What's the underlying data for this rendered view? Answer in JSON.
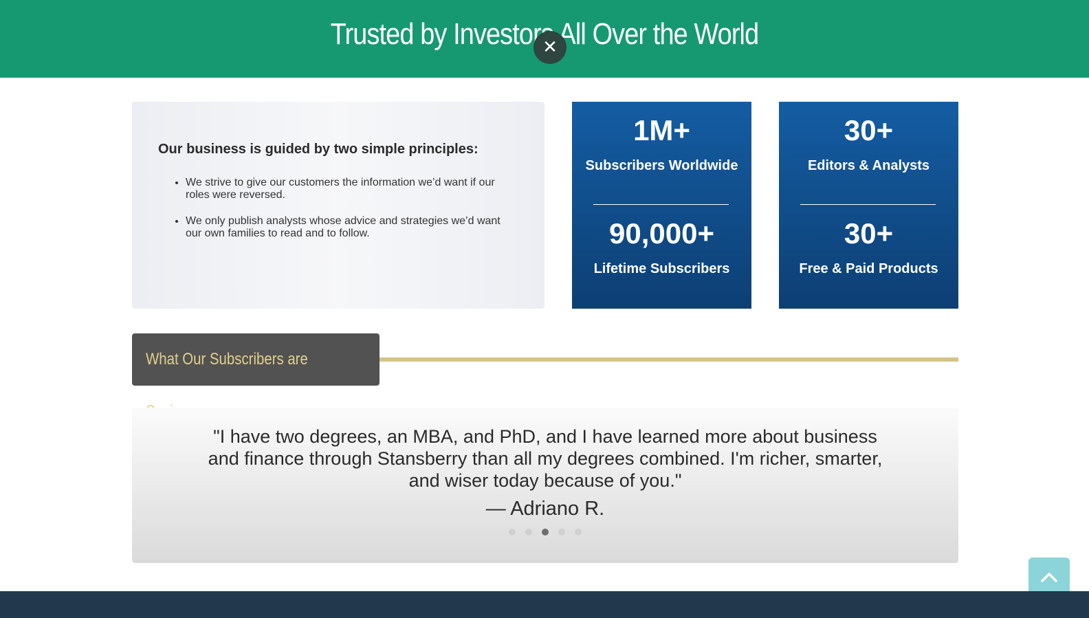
{
  "banner": {
    "title": "Trusted by Investors All Over the World",
    "background_color": "#169970"
  },
  "modal": {
    "close_icon": "close-icon"
  },
  "principles": {
    "heading": "Our business is guided by two simple principles:",
    "items": [
      "We strive to give our customers the information we’d want if our roles were reversed.",
      "We only publish analysts whose advice and strategies we’d want our own families to read and to follow."
    ]
  },
  "stats": [
    {
      "top_value": "1M+",
      "top_label": "Subscribers Worldwide",
      "bottom_value": "90,000+",
      "bottom_label": "Lifetime Subscribers"
    },
    {
      "top_value": "30+",
      "top_label": "Editors & Analysts",
      "bottom_value": "30+",
      "bottom_label": "Free & Paid Products"
    }
  ],
  "testimonials": {
    "section_title": "What Our Subscribers are Saying",
    "quote": "\"I have two degrees, an MBA, and PhD, and I have learned more about business and finance through Stansberry than all my degrees combined. I'm richer, smarter, and wiser today because of you.\"",
    "author": "— Adriano R.",
    "dots_total": 5,
    "active_dot": 3
  },
  "scroll_top": {
    "icon": "chevron-up-icon"
  },
  "colors": {
    "stat_card_top": "#145da3",
    "stat_card_bottom": "#0d3f74",
    "section_tab_bg": "#525252",
    "section_tab_text": "#e2cf8a",
    "gold_line": "#d3c28a",
    "scroll_top_bg": "#8bd4da",
    "footer_bg": "#22384d"
  }
}
